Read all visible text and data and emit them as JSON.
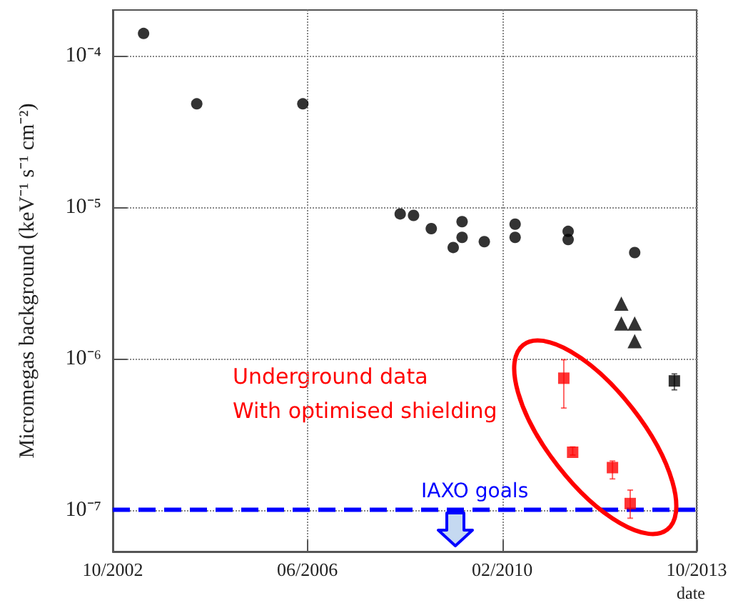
{
  "chart_data": {
    "type": "scatter",
    "xlabel": "date",
    "ylabel": "Micromegas background (keV⁻¹ s⁻¹ cm⁻²)",
    "annotations": [
      "Underground data",
      "With optimised shielding"
    ],
    "xlim": [
      "2002-10",
      "2013-10"
    ],
    "xticks": [
      {
        "value": "2002-10",
        "label": "10/2002"
      },
      {
        "value": "2006-06",
        "label": "06/2006"
      },
      {
        "value": "2010-02",
        "label": "02/2010"
      },
      {
        "value": "2013-10",
        "label": "10/2013"
      }
    ],
    "log": "y",
    "ylim": [
      5.3e-08,
      0.0002
    ],
    "yticks": [
      {
        "value": 1e-07,
        "label": "10⁻⁷"
      },
      {
        "value": 1e-06,
        "label": "10⁻⁶"
      },
      {
        "value": 1e-05,
        "label": "10⁻⁵"
      },
      {
        "value": 0.0001,
        "label": "10⁻⁴"
      }
    ],
    "grid": true,
    "ref_lines": [
      {
        "axis": "y",
        "value": 1e-07,
        "label": "IAXO goals",
        "color": "#0000ff",
        "line_style": "dashed"
      }
    ],
    "series": [
      {
        "color": "#000000",
        "marker": "circle",
        "x": [
          "2003-05",
          "2004-05",
          "2006-05",
          "2008-03",
          "2008-06",
          "2008-10",
          "2009-03",
          "2009-05",
          "2009-05",
          "2009-10",
          "2010-05",
          "2010-05",
          "2011-05",
          "2011-05",
          "2012-08"
        ],
        "values": [
          0.00014,
          4.8e-05,
          4.8e-05,
          9e-06,
          8.8e-06,
          7.2e-06,
          5.4e-06,
          8e-06,
          6.3e-06,
          5.9e-06,
          7.7e-06,
          6.3e-06,
          6.9e-06,
          6.1e-06,
          5e-06
        ]
      },
      {
        "color": "#000000",
        "marker": "triangle",
        "x": [
          "2012-05",
          "2012-05",
          "2012-08",
          "2012-08"
        ],
        "values": [
          2.3e-06,
          1.7e-06,
          1.7e-06,
          1.3e-06
        ]
      },
      {
        "color": "#ff0000",
        "marker": "square",
        "x": [
          "2011-04",
          "2011-06",
          "2012-03",
          "2012-07"
        ],
        "values": [
          7.4e-07,
          2.4e-07,
          1.9e-07,
          1.1e-07
        ],
        "errors": [
          [
            4.7e-07,
            9.8e-07
          ],
          [
            2.3e-07,
            2.6e-07
          ],
          [
            1.6e-07,
            2.1e-07
          ],
          [
            8.8e-08,
            1.35e-07
          ]
        ]
      },
      {
        "color": "#000000",
        "marker": "square",
        "x": [
          "2013-05"
        ],
        "values": [
          7.1e-07
        ],
        "errors": [
          [
            6.2e-07,
            7.9e-07
          ]
        ]
      }
    ]
  }
}
